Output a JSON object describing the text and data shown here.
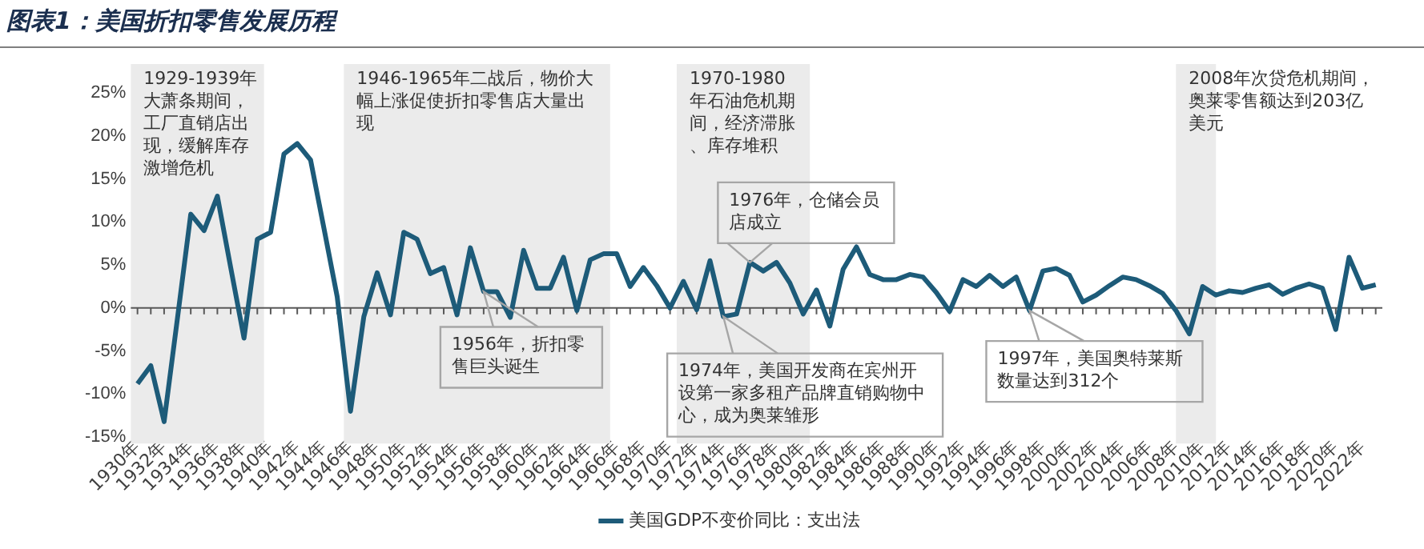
{
  "chart_data": {
    "type": "line",
    "title": "图表1：美国折扣零售发展历程",
    "x": [
      1930,
      1931,
      1932,
      1933,
      1934,
      1935,
      1936,
      1937,
      1938,
      1939,
      1940,
      1941,
      1942,
      1943,
      1944,
      1945,
      1946,
      1947,
      1948,
      1949,
      1950,
      1951,
      1952,
      1953,
      1954,
      1955,
      1956,
      1957,
      1958,
      1959,
      1960,
      1961,
      1962,
      1963,
      1964,
      1965,
      1966,
      1967,
      1968,
      1969,
      1970,
      1971,
      1972,
      1973,
      1974,
      1975,
      1976,
      1977,
      1978,
      1979,
      1980,
      1981,
      1982,
      1983,
      1984,
      1985,
      1986,
      1987,
      1988,
      1989,
      1990,
      1991,
      1992,
      1993,
      1994,
      1995,
      1996,
      1997,
      1998,
      1999,
      2000,
      2001,
      2002,
      2003,
      2004,
      2005,
      2006,
      2007,
      2008,
      2009,
      2010,
      2011,
      2012,
      2013,
      2014,
      2015,
      2016,
      2017,
      2018,
      2019,
      2020,
      2021,
      2022,
      2023
    ],
    "series": [
      {
        "name": "美国GDP不变价同比：支出法",
        "color": "#1d5b79",
        "values": [
          -8.8,
          -6.7,
          -13.2,
          -1.2,
          10.9,
          9.0,
          13.0,
          4.7,
          -3.5,
          8.0,
          8.8,
          17.9,
          19.1,
          17.2,
          9.3,
          1.3,
          -12.0,
          -1.0,
          4.1,
          -0.8,
          8.8,
          8.0,
          4.0,
          4.7,
          -0.8,
          7.0,
          1.9,
          1.9,
          -1.1,
          6.7,
          2.3,
          2.3,
          5.9,
          -0.3,
          5.6,
          6.3,
          6.3,
          2.5,
          4.7,
          2.6,
          0.0,
          3.1,
          -0.2,
          5.5,
          -1.0,
          -0.7,
          5.3,
          4.3,
          5.3,
          2.9,
          -0.7,
          2.1,
          -2.1,
          4.5,
          7.1,
          3.9,
          3.3,
          3.3,
          3.9,
          3.6,
          1.8,
          -0.4,
          3.3,
          2.5,
          3.8,
          2.5,
          3.6,
          -0.3,
          4.3,
          4.6,
          3.8,
          0.7,
          1.5,
          2.6,
          3.6,
          3.3,
          2.6,
          1.7,
          -0.3,
          -3.0,
          2.5,
          1.5,
          2.0,
          1.8,
          2.3,
          2.7,
          1.6,
          2.3,
          2.8,
          2.3,
          -2.5,
          5.9,
          2.3,
          2.7
        ]
      }
    ],
    "xlim": [
      1929.5,
      2023.5
    ],
    "xticks": [
      {
        "value": 1930,
        "label": "1930年"
      },
      {
        "value": 1931,
        "label": null
      },
      {
        "value": 1932,
        "label": "1932年"
      },
      {
        "value": 1933,
        "label": null
      },
      {
        "value": 1934,
        "label": "1934年"
      },
      {
        "value": 1935,
        "label": null
      },
      {
        "value": 1936,
        "label": "1936年"
      },
      {
        "value": 1937,
        "label": null
      },
      {
        "value": 1938,
        "label": "1938年"
      },
      {
        "value": 1939,
        "label": null
      },
      {
        "value": 1940,
        "label": "1940年"
      },
      {
        "value": 1941,
        "label": null
      },
      {
        "value": 1942,
        "label": "1942年"
      },
      {
        "value": 1943,
        "label": null
      },
      {
        "value": 1944,
        "label": "1944年"
      },
      {
        "value": 1945,
        "label": null
      },
      {
        "value": 1946,
        "label": "1946年"
      },
      {
        "value": 1947,
        "label": null
      },
      {
        "value": 1948,
        "label": "1948年"
      },
      {
        "value": 1949,
        "label": null
      },
      {
        "value": 1950,
        "label": "1950年"
      },
      {
        "value": 1951,
        "label": null
      },
      {
        "value": 1952,
        "label": "1952年"
      },
      {
        "value": 1953,
        "label": null
      },
      {
        "value": 1954,
        "label": "1954年"
      },
      {
        "value": 1955,
        "label": null
      },
      {
        "value": 1956,
        "label": "1956年"
      },
      {
        "value": 1957,
        "label": null
      },
      {
        "value": 1958,
        "label": "1958年"
      },
      {
        "value": 1959,
        "label": null
      },
      {
        "value": 1960,
        "label": "1960年"
      },
      {
        "value": 1961,
        "label": null
      },
      {
        "value": 1962,
        "label": "1962年"
      },
      {
        "value": 1963,
        "label": null
      },
      {
        "value": 1964,
        "label": "1964年"
      },
      {
        "value": 1965,
        "label": null
      },
      {
        "value": 1966,
        "label": "1966年"
      },
      {
        "value": 1967,
        "label": null
      },
      {
        "value": 1968,
        "label": "1968年"
      },
      {
        "value": 1969,
        "label": null
      },
      {
        "value": 1970,
        "label": "1970年"
      },
      {
        "value": 1971,
        "label": null
      },
      {
        "value": 1972,
        "label": "1972年"
      },
      {
        "value": 1973,
        "label": null
      },
      {
        "value": 1974,
        "label": "1974年"
      },
      {
        "value": 1975,
        "label": null
      },
      {
        "value": 1976,
        "label": "1976年"
      },
      {
        "value": 1977,
        "label": null
      },
      {
        "value": 1978,
        "label": "1978年"
      },
      {
        "value": 1979,
        "label": null
      },
      {
        "value": 1980,
        "label": "1980年"
      },
      {
        "value": 1981,
        "label": null
      },
      {
        "value": 1982,
        "label": "1982年"
      },
      {
        "value": 1983,
        "label": null
      },
      {
        "value": 1984,
        "label": "1984年"
      },
      {
        "value": 1985,
        "label": null
      },
      {
        "value": 1986,
        "label": "1986年"
      },
      {
        "value": 1987,
        "label": null
      },
      {
        "value": 1988,
        "label": "1988年"
      },
      {
        "value": 1989,
        "label": null
      },
      {
        "value": 1990,
        "label": "1990年"
      },
      {
        "value": 1991,
        "label": null
      },
      {
        "value": 1992,
        "label": "1992年"
      },
      {
        "value": 1993,
        "label": null
      },
      {
        "value": 1994,
        "label": "1994年"
      },
      {
        "value": 1995,
        "label": null
      },
      {
        "value": 1996,
        "label": "1996年"
      },
      {
        "value": 1997,
        "label": null
      },
      {
        "value": 1998,
        "label": "1998年"
      },
      {
        "value": 1999,
        "label": null
      },
      {
        "value": 2000,
        "label": "2000年"
      },
      {
        "value": 2001,
        "label": null
      },
      {
        "value": 2002,
        "label": "2002年"
      },
      {
        "value": 2003,
        "label": null
      },
      {
        "value": 2004,
        "label": "2004年"
      },
      {
        "value": 2005,
        "label": null
      },
      {
        "value": 2006,
        "label": "2006年"
      },
      {
        "value": 2007,
        "label": null
      },
      {
        "value": 2008,
        "label": "2008年"
      },
      {
        "value": 2009,
        "label": null
      },
      {
        "value": 2010,
        "label": "2010年"
      },
      {
        "value": 2011,
        "label": null
      },
      {
        "value": 2012,
        "label": "2012年"
      },
      {
        "value": 2013,
        "label": null
      },
      {
        "value": 2014,
        "label": "2014年"
      },
      {
        "value": 2015,
        "label": null
      },
      {
        "value": 2016,
        "label": "2016年"
      },
      {
        "value": 2017,
        "label": null
      },
      {
        "value": 2018,
        "label": "2018年"
      },
      {
        "value": 2019,
        "label": null
      },
      {
        "value": 2020,
        "label": "2020年"
      },
      {
        "value": 2021,
        "label": null
      },
      {
        "value": 2022,
        "label": "2022年"
      },
      {
        "value": 2023,
        "label": null
      }
    ],
    "ylim": [
      -15,
      25
    ],
    "yticks": [
      {
        "value": -15,
        "label": "-15%"
      },
      {
        "value": -10,
        "label": "-10%"
      },
      {
        "value": -5,
        "label": "-5%"
      },
      {
        "value": 0,
        "label": "0%"
      },
      {
        "value": 5,
        "label": "5%"
      },
      {
        "value": 10,
        "label": "10%"
      },
      {
        "value": 15,
        "label": "15%"
      },
      {
        "value": 20,
        "label": "20%"
      },
      {
        "value": 25,
        "label": "25%"
      }
    ],
    "ref_lines": [
      {
        "axis": "y",
        "value": 0,
        "color": "#595959"
      }
    ],
    "bands": [
      {
        "axis": "x",
        "from": 1929.5,
        "to": 1939.5,
        "color": "#ebebeb",
        "label": "1929-1939年大萧条期间，工厂直销店出现，缓解库存激增危机"
      },
      {
        "axis": "x",
        "from": 1945.5,
        "to": 1965.5,
        "color": "#ebebeb",
        "label": "1946-1965年二战后，物价大幅上涨促使折扣零售店大量出现"
      },
      {
        "axis": "x",
        "from": 1970.5,
        "to": 1980.5,
        "color": "#ebebeb",
        "label": "1970-1980年石油危机期间，经济滞胀、库存堆积"
      },
      {
        "axis": "x",
        "from": 2008,
        "to": 2011,
        "color": "#ebebeb",
        "label": "2008年次贷危机期间，奥莱零售额达到203亿美元"
      }
    ],
    "annotations": [
      {
        "text": "1956年，折扣零售巨头诞生",
        "x": 1956,
        "y": 1.9
      },
      {
        "text": "1974年，美国开发商在宾州开设第一家多租产品牌直销购物中心，成为奥莱雏形",
        "x": 1974,
        "y": -1.0
      },
      {
        "text": "1976年，仓储会员店成立",
        "x": 1976,
        "y": 5.3
      },
      {
        "text": "1997年，美国奥特莱斯数量达到312个",
        "x": 1997,
        "y": -0.3
      }
    ],
    "grid": false,
    "legend": "bottom",
    "marker": "none",
    "line_style": "solid"
  }
}
